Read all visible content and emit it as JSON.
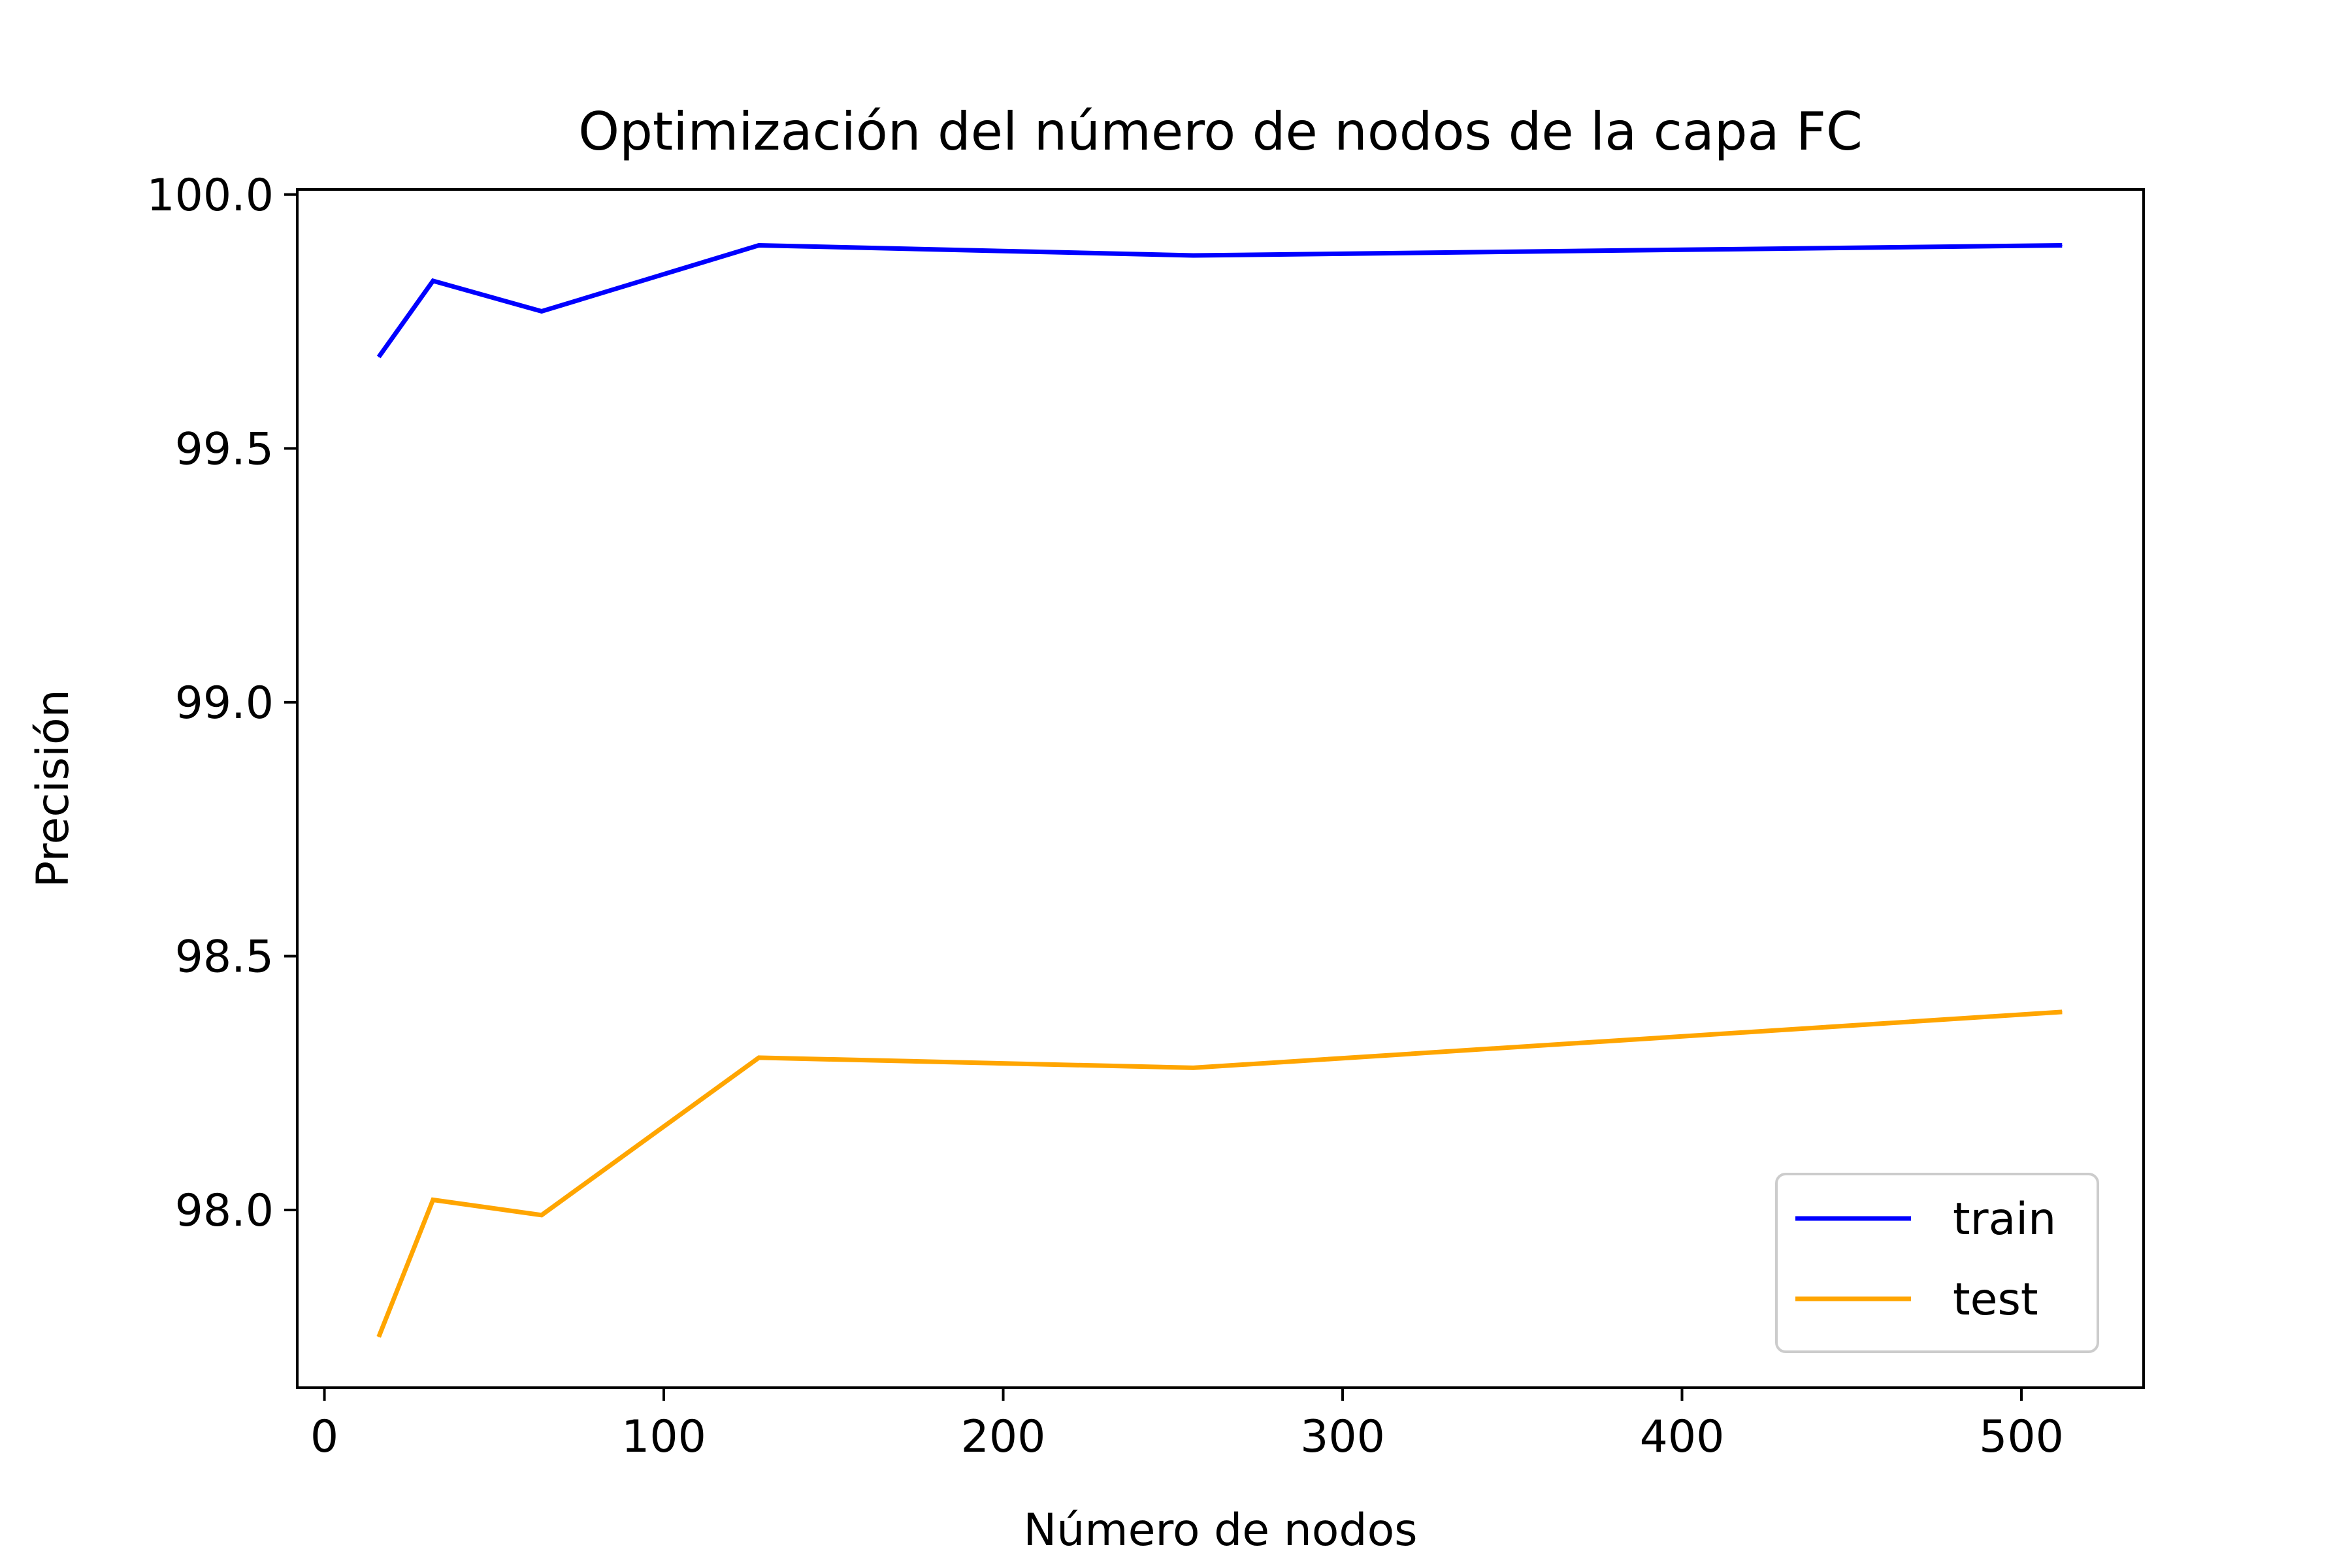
{
  "chart_data": {
    "type": "line",
    "title": "Optimización del número de nodos de la capa FC",
    "xlabel": "Número de nodos",
    "ylabel": "Precisión",
    "xlim": [
      -8,
      536
    ],
    "ylim": [
      97.65,
      100.01
    ],
    "x_ticks": [
      0,
      100,
      200,
      300,
      400,
      500
    ],
    "y_ticks": [
      98.0,
      98.5,
      99.0,
      99.5,
      100.0
    ],
    "x_tick_labels": [
      "0",
      "100",
      "200",
      "300",
      "400",
      "500"
    ],
    "y_tick_labels": [
      "98.0",
      "98.5",
      "99.0",
      "99.5",
      "100.0"
    ],
    "grid": false,
    "legend_position": "lower-right",
    "x": [
      16,
      32,
      64,
      128,
      256,
      512
    ],
    "series": [
      {
        "name": "train",
        "color": "#0000ff",
        "values": [
          99.68,
          99.83,
          99.77,
          99.9,
          99.88,
          99.9
        ]
      },
      {
        "name": "test",
        "color": "#ffa500",
        "values": [
          97.75,
          98.02,
          97.99,
          98.3,
          98.28,
          98.39
        ]
      }
    ]
  }
}
